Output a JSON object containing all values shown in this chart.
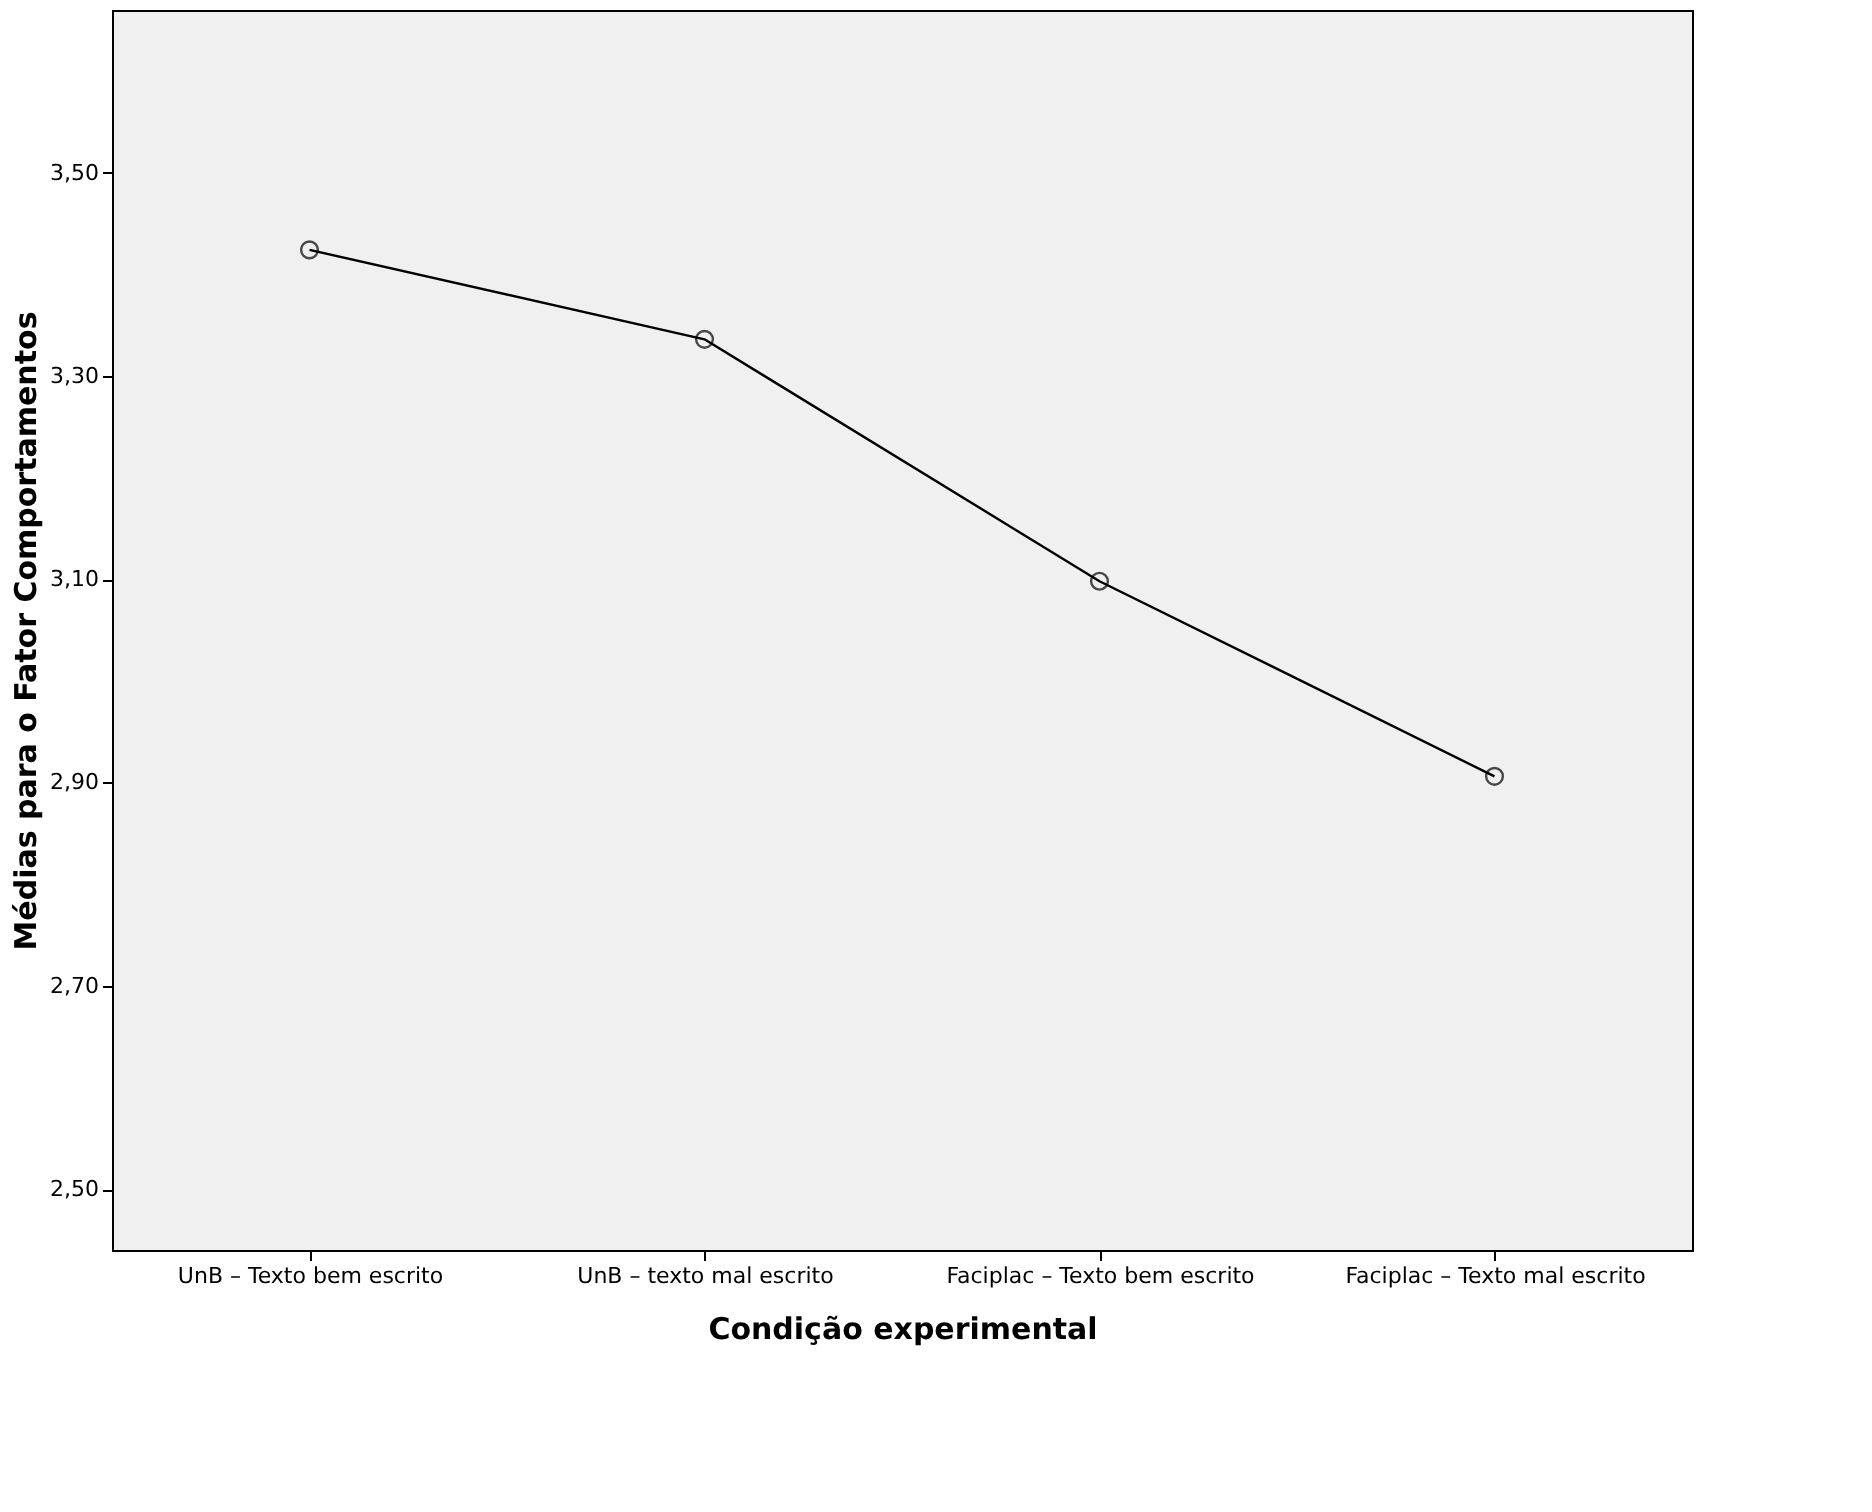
{
  "chart_data": {
    "type": "line",
    "xlabel": "Condição experimental",
    "ylabel": "Médias para o Fator Comportamentos",
    "categories": [
      "UnB – Texto bem escrito",
      "UnB – texto mal escrito",
      "Faciplac – Texto bem escrito",
      "Faciplac – Texto mal escrito"
    ],
    "series": [
      {
        "color": "#000000",
        "values": [
          3.424,
          3.336,
          3.098,
          2.906
        ]
      }
    ],
    "ylim": [
      2.44,
      3.66
    ],
    "yticks": [
      {
        "value": 2.5,
        "label": "2,50"
      },
      {
        "value": 2.7,
        "label": "2,70"
      },
      {
        "value": 2.9,
        "label": "2,90"
      },
      {
        "value": 3.1,
        "label": "3,10"
      },
      {
        "value": 3.3,
        "label": "3,30"
      },
      {
        "value": 3.5,
        "label": "3,50"
      }
    ],
    "grid": false,
    "marker": "circle",
    "line_style": "solid"
  }
}
